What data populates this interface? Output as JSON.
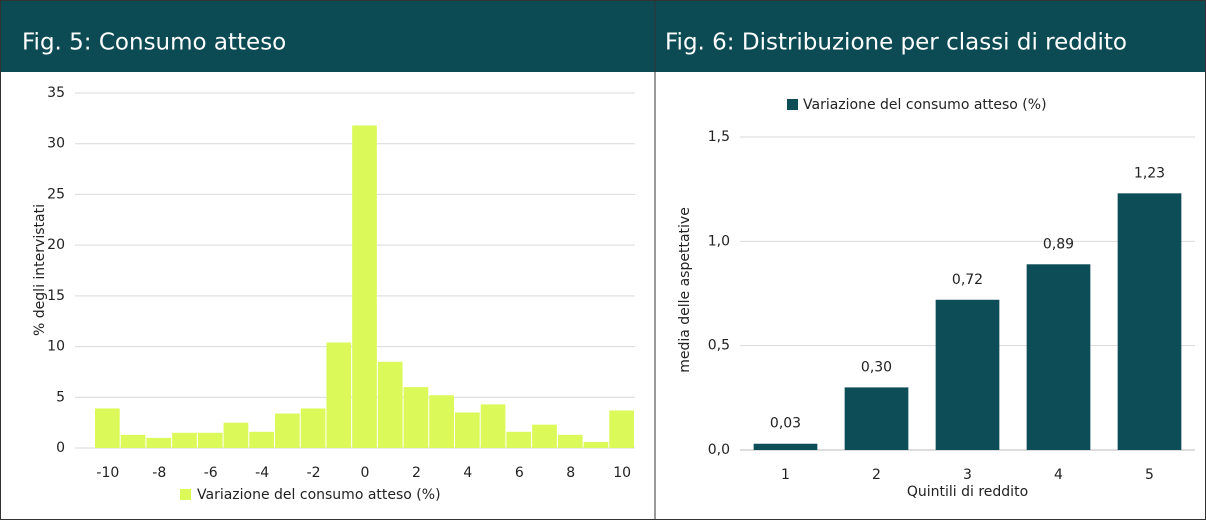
{
  "chart_data": [
    {
      "type": "histogram",
      "title": "Fig. 5: Consumo atteso",
      "ylabel": "% degli intervistati",
      "legend": "Variazione del consumo atteso (%)",
      "color": "#dcf95a",
      "bins": [
        -10.5,
        -9.5,
        -8.5,
        -7.5,
        -6.5,
        -5.5,
        -4.5,
        -3.5,
        -2.5,
        -1.5,
        -0.5,
        0.5,
        1.5,
        2.5,
        3.5,
        4.5,
        5.5,
        6.5,
        7.5,
        8.5,
        9.5,
        10.5
      ],
      "counts": [
        3.9,
        1.3,
        1.0,
        1.5,
        1.5,
        2.5,
        1.6,
        3.4,
        3.9,
        10.4,
        31.8,
        8.5,
        6.0,
        5.2,
        3.5,
        4.3,
        1.6,
        2.3,
        1.3,
        0.6,
        3.7
      ],
      "xlim": [
        -10.5,
        10.5
      ],
      "xticks": [
        -10,
        -8,
        -6,
        -4,
        -2,
        0,
        2,
        4,
        6,
        8,
        10
      ],
      "ylim": [
        0,
        35
      ],
      "yticks": [
        0,
        5,
        10,
        15,
        20,
        25,
        30,
        35
      ],
      "grid": true
    },
    {
      "type": "bar",
      "title": "Fig. 6: Distribuzione per classi di reddito",
      "xlabel": "Quintili di reddito",
      "ylabel": "media delle aspettative",
      "categories": [
        "1",
        "2",
        "3",
        "4",
        "5"
      ],
      "series": [
        {
          "name": "Variazione del consumo atteso (%)",
          "color": "#0c4d57",
          "values": [
            0.03,
            0.3,
            0.72,
            0.89,
            1.23
          ],
          "value_labels": [
            "0,03",
            "0,30",
            "0,72",
            "0,89",
            "1,23"
          ]
        }
      ],
      "ylim": [
        0,
        1.5
      ],
      "yticks": [
        {
          "value": 0,
          "label": "0,0"
        },
        {
          "value": 0.5,
          "label": "0,5"
        },
        {
          "value": 1,
          "label": "1,0"
        },
        {
          "value": 1.5,
          "label": "1,5"
        }
      ],
      "grid": true
    }
  ]
}
